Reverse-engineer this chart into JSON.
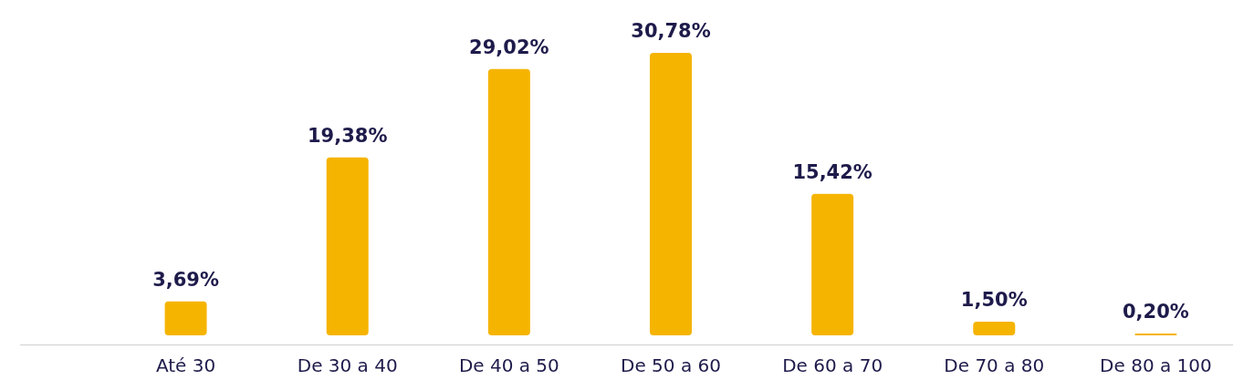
{
  "chart_data": {
    "type": "bar",
    "categories": [
      "Até 30",
      "De 30 a 40",
      "De 40 a 50",
      "De 50 a 60",
      "De 60 a 70",
      "De 70 a 80",
      "De 80 a 100"
    ],
    "values": [
      3.69,
      19.38,
      29.02,
      30.78,
      15.42,
      1.5,
      0.2
    ],
    "value_labels": [
      "3,69%",
      "19,38%",
      "29,02%",
      "30,78%",
      "15,42%",
      "1,50%",
      "0,20%"
    ],
    "color": "#f5b400"
  }
}
